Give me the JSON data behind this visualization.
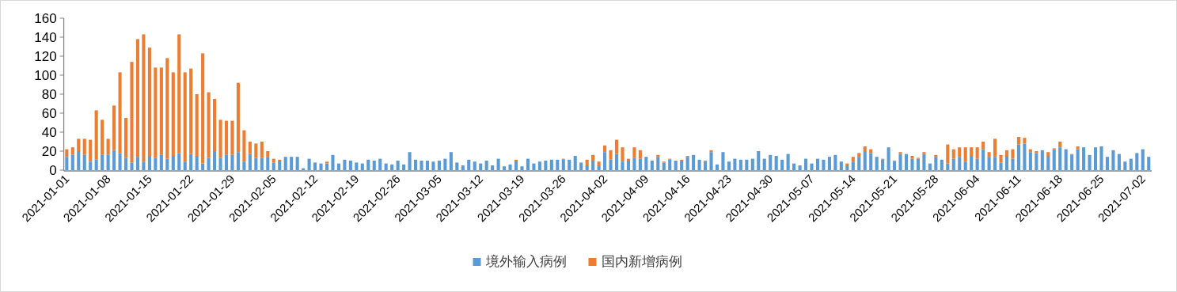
{
  "chart_data": {
    "type": "bar",
    "stacked": true,
    "legend": "bottom",
    "grid": false,
    "ylim": [
      0,
      160
    ],
    "yticks": [
      0,
      20,
      40,
      60,
      80,
      100,
      120,
      140,
      160
    ],
    "categories": [
      "2021-01-01",
      null,
      null,
      null,
      null,
      null,
      null,
      "2021-01-08",
      null,
      null,
      null,
      null,
      null,
      null,
      "2021-01-15",
      null,
      null,
      null,
      null,
      null,
      null,
      "2021-01-22",
      null,
      null,
      null,
      null,
      null,
      null,
      "2021-01-29",
      null,
      null,
      null,
      null,
      null,
      null,
      "2021-02-05",
      null,
      null,
      null,
      null,
      null,
      null,
      "2021-02-12",
      null,
      null,
      null,
      null,
      null,
      null,
      "2021-02-19",
      null,
      null,
      null,
      null,
      null,
      null,
      "2021-02-26",
      null,
      null,
      null,
      null,
      null,
      null,
      "2021-03-05",
      null,
      null,
      null,
      null,
      null,
      null,
      "2021-03-12",
      null,
      null,
      null,
      null,
      null,
      null,
      "2021-03-19",
      null,
      null,
      null,
      null,
      null,
      null,
      "2021-03-26",
      null,
      null,
      null,
      null,
      null,
      null,
      "2021-04-02",
      null,
      null,
      null,
      null,
      null,
      null,
      "2021-04-09",
      null,
      null,
      null,
      null,
      null,
      null,
      "2021-04-16",
      null,
      null,
      null,
      null,
      null,
      null,
      "2021-04-23",
      null,
      null,
      null,
      null,
      null,
      null,
      "2021-04-30",
      null,
      null,
      null,
      null,
      null,
      null,
      "2021-05-07",
      null,
      null,
      null,
      null,
      null,
      null,
      "2021-05-14",
      null,
      null,
      null,
      null,
      null,
      null,
      "2021-05-21",
      null,
      null,
      null,
      null,
      null,
      null,
      "2021-05-28",
      null,
      null,
      null,
      null,
      null,
      null,
      "2021-06-04",
      null,
      null,
      null,
      null,
      null,
      null,
      "2021-06-11",
      null,
      null,
      null,
      null,
      null,
      null,
      "2021-06-18",
      null,
      null,
      null,
      null,
      null,
      null,
      "2021-06-25",
      null,
      null,
      null,
      null,
      null,
      null,
      "2021-07-02",
      null
    ],
    "series": [
      {
        "name": "境外输入病例",
        "color": "#5b9bd5",
        "values": [
          14,
          16,
          20,
          16,
          9,
          11,
          16,
          16,
          21,
          18,
          13,
          8,
          14,
          9,
          15,
          13,
          16,
          12,
          15,
          18,
          9,
          17,
          15,
          7,
          13,
          20,
          13,
          16,
          16,
          19,
          9,
          17,
          13,
          13,
          14,
          8,
          10,
          14,
          14,
          14,
          2,
          12,
          8,
          7,
          7,
          16,
          7,
          11,
          10,
          8,
          7,
          11,
          10,
          12,
          7,
          6,
          10,
          6,
          19,
          11,
          10,
          10,
          9,
          10,
          12,
          19,
          8,
          5,
          11,
          9,
          7,
          10,
          5,
          12,
          4,
          6,
          10,
          4,
          12,
          7,
          9,
          10,
          11,
          11,
          11,
          11,
          15,
          8,
          5,
          10,
          5,
          19,
          11,
          17,
          9,
          10,
          13,
          12,
          14,
          10,
          14,
          8,
          11,
          10,
          10,
          14,
          16,
          11,
          9,
          19,
          6,
          19,
          9,
          12,
          11,
          11,
          12,
          20,
          12,
          16,
          15,
          11,
          17,
          7,
          5,
          12,
          7,
          12,
          11,
          14,
          16,
          9,
          5,
          9,
          14,
          20,
          18,
          14,
          11,
          24,
          9,
          17,
          17,
          12,
          12,
          17,
          7,
          14,
          11,
          7,
          12,
          14,
          9,
          15,
          12,
          22,
          14,
          14,
          8,
          15,
          12,
          27,
          28,
          19,
          18,
          21,
          15,
          22,
          24,
          22,
          16,
          22,
          24,
          16,
          24,
          25,
          14,
          21,
          17,
          9,
          12,
          18,
          22,
          14
        ]
      },
      {
        "name": "国内新增病例",
        "color": "#ed7d31",
        "values": [
          8,
          8,
          13,
          17,
          23,
          52,
          37,
          17,
          47,
          85,
          42,
          106,
          124,
          134,
          114,
          95,
          92,
          106,
          88,
          125,
          94,
          90,
          65,
          116,
          69,
          55,
          40,
          36,
          36,
          73,
          33,
          13,
          15,
          17,
          6,
          4,
          1,
          0,
          0,
          0,
          0,
          0,
          0,
          0,
          2,
          0,
          0,
          0,
          0,
          0,
          0,
          0,
          0,
          0,
          0,
          0,
          0,
          0,
          0,
          0,
          0,
          0,
          0,
          0,
          0,
          0,
          0,
          0,
          0,
          0,
          0,
          0,
          0,
          0,
          0,
          0,
          1,
          0,
          0,
          0,
          0,
          0,
          0,
          0,
          1,
          0,
          0,
          0,
          6,
          6,
          4,
          7,
          10,
          15,
          15,
          2,
          11,
          9,
          0,
          0,
          2,
          1,
          1,
          0,
          1,
          1,
          0,
          0,
          1,
          2,
          0,
          0,
          0,
          0,
          0,
          0,
          0,
          0,
          0,
          0,
          0,
          0,
          0,
          0,
          0,
          0,
          0,
          0,
          0,
          0,
          0,
          0,
          2,
          5,
          4,
          5,
          4,
          0,
          1,
          0,
          1,
          2,
          0,
          3,
          1,
          2,
          0,
          2,
          0,
          20,
          10,
          10,
          15,
          9,
          12,
          8,
          5,
          19,
          8,
          6,
          10,
          8,
          6,
          3,
          2,
          0,
          4,
          1,
          6,
          0,
          1,
          3,
          0,
          0,
          0,
          0,
          0,
          0,
          0,
          0,
          0,
          0,
          0,
          0
        ]
      }
    ]
  }
}
